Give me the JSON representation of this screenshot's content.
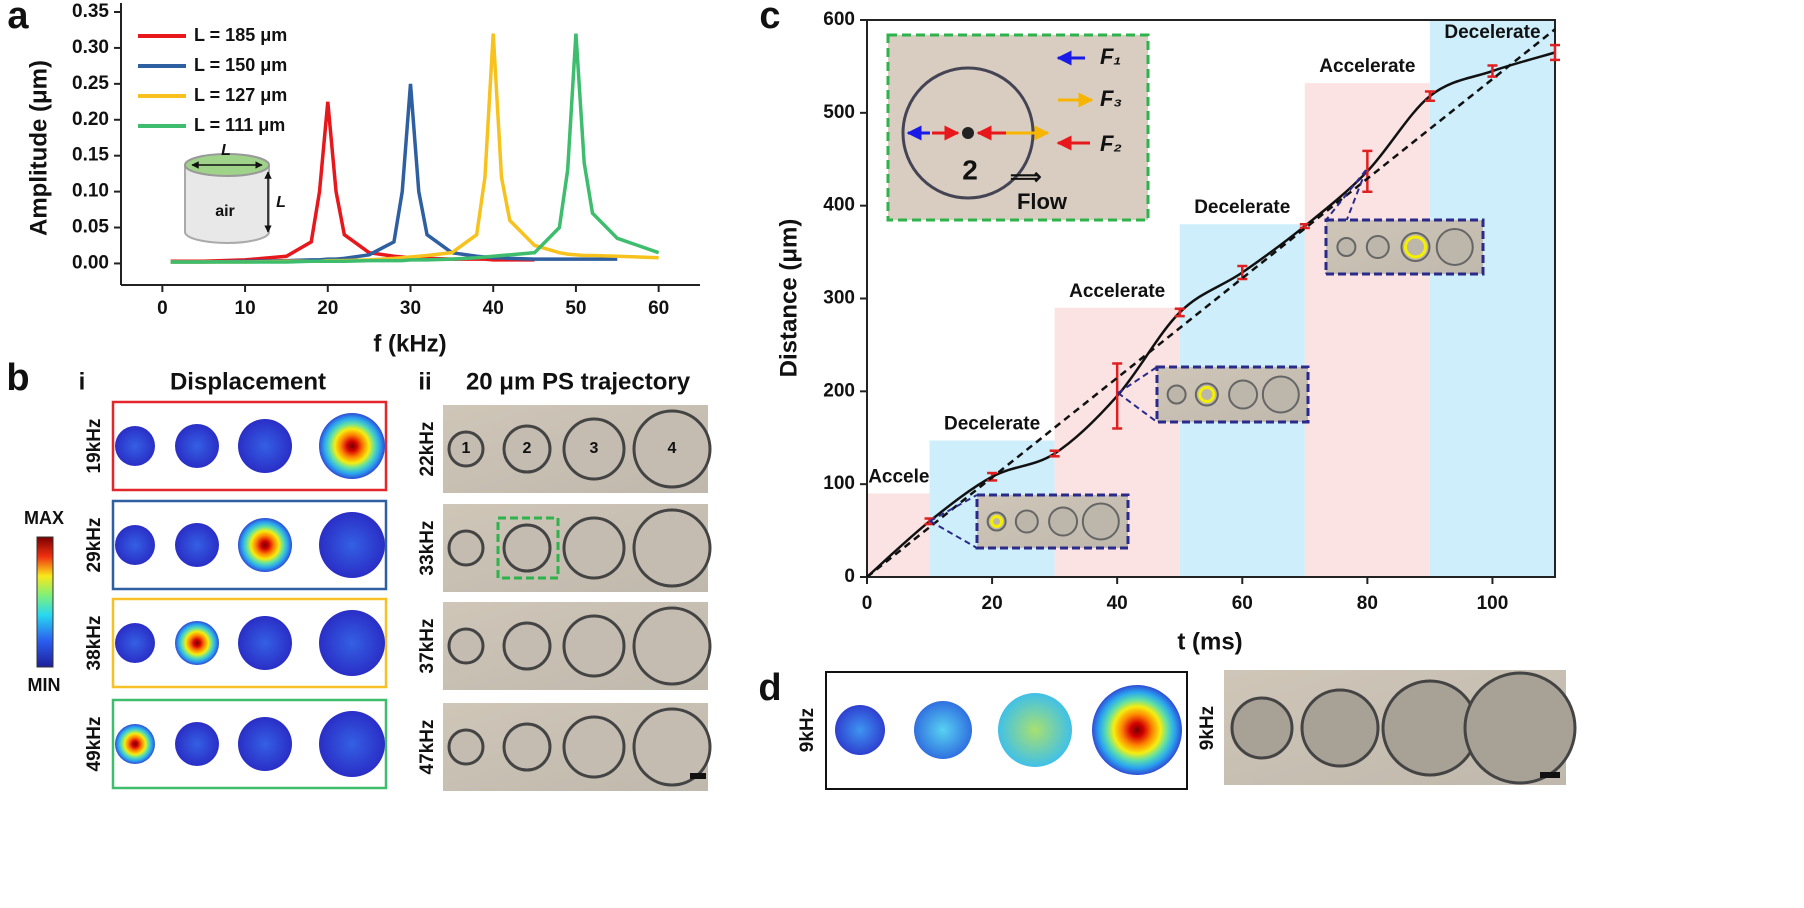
{
  "panel_labels": [
    "a",
    "b",
    "c",
    "d"
  ],
  "chart_data": [
    {
      "type": "line",
      "xlabel": "f (kHz)",
      "ylabel": "Amplitude (μm)",
      "xlim": [
        -5,
        65
      ],
      "ylim": [
        -0.03,
        0.35
      ],
      "xticks": [
        0,
        10,
        20,
        30,
        40,
        50,
        60
      ],
      "yticks": [
        {
          "value": 0,
          "label": "0.00"
        },
        {
          "value": 0.05,
          "label": "0.05"
        },
        {
          "value": 0.1,
          "label": "0.10"
        },
        {
          "value": 0.15,
          "label": "0.15"
        },
        {
          "value": 0.2,
          "label": "0.20"
        },
        {
          "value": 0.25,
          "label": "0.25"
        },
        {
          "value": 0.3,
          "label": "0.30"
        },
        {
          "value": 0.35,
          "label": "0.35"
        }
      ],
      "legend": "upper left",
      "inset_labels": [
        "L",
        "L",
        "air"
      ],
      "x": [
        1,
        5,
        10,
        15,
        18,
        19,
        20,
        21,
        22,
        25,
        28,
        29,
        30,
        31,
        32,
        35,
        38,
        39,
        40,
        41,
        42,
        45,
        48,
        49,
        50,
        51,
        52,
        55,
        60
      ],
      "series": [
        {
          "name": "L = 185 μm",
          "color": "#e8171b",
          "values": [
            0.003,
            0.003,
            0.005,
            0.01,
            0.03,
            0.1,
            0.225,
            0.1,
            0.04,
            0.015,
            0.01,
            0.009,
            0.008,
            0.007,
            0.007,
            0.006,
            0.006,
            0.006,
            0.005,
            0.005,
            0.005,
            0.005,
            null,
            null,
            null,
            null,
            null,
            null,
            null
          ]
        },
        {
          "name": "L = 150 μm",
          "color": "#2e5fa1",
          "values": [
            0.002,
            0.002,
            0.003,
            0.004,
            0.005,
            0.005,
            0.006,
            0.006,
            0.007,
            0.012,
            0.03,
            0.1,
            0.25,
            0.1,
            0.04,
            0.015,
            0.01,
            0.009,
            0.008,
            0.008,
            0.007,
            0.006,
            0.006,
            0.006,
            0.006,
            0.006,
            0.006,
            0.006,
            null
          ]
        },
        {
          "name": "L = 127 μm",
          "color": "#f7c21e",
          "values": [
            0.002,
            0.002,
            0.002,
            0.003,
            0.003,
            0.003,
            0.004,
            0.004,
            0.004,
            0.005,
            0.007,
            0.008,
            0.009,
            0.01,
            0.011,
            0.015,
            0.04,
            0.12,
            0.32,
            0.12,
            0.06,
            0.025,
            0.015,
            0.013,
            0.012,
            0.011,
            0.011,
            0.01,
            0.008
          ]
        },
        {
          "name": "L = 111 μm",
          "color": "#3dbd6d",
          "values": [
            0.002,
            0.002,
            0.002,
            0.002,
            0.003,
            0.003,
            0.003,
            0.003,
            0.003,
            0.004,
            0.004,
            0.004,
            0.005,
            0.005,
            0.005,
            0.006,
            0.008,
            0.009,
            0.01,
            0.011,
            0.012,
            0.015,
            0.05,
            0.13,
            0.32,
            0.14,
            0.07,
            0.035,
            0.015
          ]
        }
      ]
    },
    {
      "type": "line",
      "xlabel": "t (ms)",
      "ylabel": "Distance (μm)",
      "xlim": [
        0,
        110
      ],
      "ylim": [
        0,
        600
      ],
      "xticks": [
        0,
        20,
        40,
        60,
        80,
        100
      ],
      "yticks": [
        0,
        100,
        200,
        300,
        400,
        500,
        600
      ],
      "regions": [
        {
          "label": "Accelerate",
          "start": 0,
          "end": 10,
          "top": 90,
          "color": "#fbe3e3"
        },
        {
          "label": "Decelerate",
          "start": 10,
          "end": 30,
          "top": 147,
          "color": "#cdeefa"
        },
        {
          "label": "Accelerate",
          "start": 30,
          "end": 50,
          "top": 290,
          "color": "#fbe3e3"
        },
        {
          "label": "Decelerate",
          "start": 50,
          "end": 70,
          "top": 380,
          "color": "#cdeefa"
        },
        {
          "label": "Accelerate",
          "start": 70,
          "end": 90,
          "top": 532,
          "color": "#fbe3e3"
        },
        {
          "label": "Decelerate",
          "start": 90,
          "end": 110,
          "top": 600,
          "color": "#cdeefa"
        }
      ],
      "x": [
        0,
        10,
        20,
        30,
        40,
        50,
        60,
        70,
        80,
        90,
        100,
        110
      ],
      "series": [
        {
          "color": "#111111",
          "style": "solid",
          "error_color": "#e02020",
          "values": [
            0,
            60,
            108,
            133,
            195,
            285,
            328,
            378,
            437,
            518,
            545,
            565
          ],
          "errors": [
            null,
            3,
            4,
            3,
            35,
            4,
            7,
            2,
            22,
            5,
            6,
            8
          ]
        },
        {
          "color": "#111111",
          "style": "dashed",
          "x": [
            0,
            110
          ],
          "values": [
            0,
            590
          ]
        }
      ],
      "inset": {
        "forces": [
          "F₁",
          "F₃",
          "F₂"
        ],
        "id": "2",
        "flow": "Flow"
      }
    }
  ],
  "panel_b": {
    "sub_labels": [
      "i",
      "ii"
    ],
    "titles": [
      "Displacement",
      "20 μm PS trajectory"
    ],
    "sim_freqs": [
      "19kHz",
      "29kHz",
      "38kHz",
      "49kHz"
    ],
    "exp_freqs": [
      "22kHz",
      "33kHz",
      "37kHz",
      "47kHz"
    ],
    "colorbar": [
      "MAX",
      "MIN"
    ],
    "particle_ids": [
      "1",
      "2",
      "3",
      "4"
    ]
  },
  "panel_d": {
    "freqs": [
      "9kHz",
      "9kHz"
    ]
  }
}
